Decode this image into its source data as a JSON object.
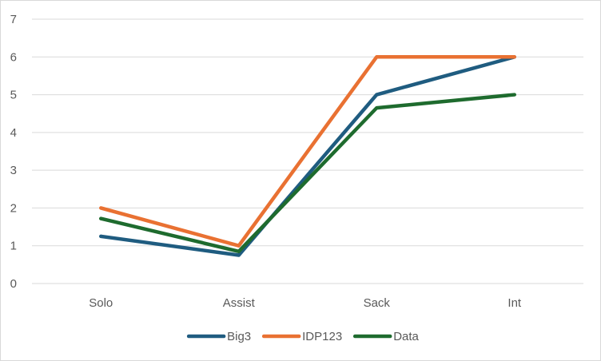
{
  "chart_data": {
    "type": "line",
    "title": "",
    "xlabel": "",
    "ylabel": "",
    "categories": [
      "Solo",
      "Assist",
      "Sack",
      "Int"
    ],
    "ylim": [
      0,
      7
    ],
    "yticks": [
      "0",
      "1",
      "2",
      "3",
      "4",
      "5",
      "6",
      "7"
    ],
    "grid": "horizontal",
    "legend_position": "bottom",
    "series": [
      {
        "name": "Big3",
        "color": "#1f5c80",
        "values": [
          1.25,
          0.75,
          5.0,
          6.0
        ]
      },
      {
        "name": "IDP123",
        "color": "#e97132",
        "values": [
          2.0,
          1.0,
          6.0,
          6.0
        ]
      },
      {
        "name": "Data",
        "color": "#1e6b2e",
        "values": [
          1.72,
          0.85,
          4.65,
          5.0
        ]
      }
    ]
  }
}
